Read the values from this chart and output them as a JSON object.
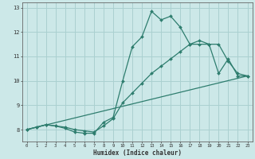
{
  "xlabel": "Humidex (Indice chaleur)",
  "bg_color": "#cce8e8",
  "grid_color": "#aad0d0",
  "line_color": "#2e7d6e",
  "xlim": [
    -0.5,
    23.5
  ],
  "ylim": [
    7.5,
    13.2
  ],
  "xticks": [
    0,
    1,
    2,
    3,
    4,
    5,
    6,
    7,
    8,
    9,
    10,
    11,
    12,
    13,
    14,
    15,
    16,
    17,
    18,
    19,
    20,
    21,
    22,
    23
  ],
  "yticks": [
    8,
    9,
    10,
    11,
    12,
    13
  ],
  "series1_x": [
    0,
    1,
    2,
    3,
    4,
    5,
    6,
    7,
    8,
    9,
    10,
    11,
    12,
    13,
    14,
    15,
    16,
    17,
    18,
    19,
    20,
    21,
    22,
    23
  ],
  "series1_y": [
    8.0,
    8.1,
    8.2,
    8.15,
    8.05,
    7.9,
    7.85,
    7.85,
    8.3,
    8.5,
    10.0,
    11.4,
    11.8,
    12.85,
    12.5,
    12.65,
    12.2,
    11.5,
    11.5,
    11.5,
    10.3,
    10.9,
    10.2,
    10.2
  ],
  "series2_x": [
    0,
    1,
    2,
    3,
    4,
    5,
    6,
    7,
    8,
    9,
    10,
    11,
    12,
    13,
    14,
    15,
    16,
    17,
    18,
    19,
    20,
    21,
    22,
    23
  ],
  "series2_y": [
    8.0,
    8.1,
    8.2,
    8.15,
    8.1,
    8.0,
    7.95,
    7.9,
    8.15,
    8.45,
    9.1,
    9.5,
    9.9,
    10.3,
    10.6,
    10.9,
    11.2,
    11.5,
    11.65,
    11.5,
    11.5,
    10.8,
    10.3,
    10.2
  ],
  "series3_x": [
    0,
    23
  ],
  "series3_y": [
    8.0,
    10.2
  ]
}
